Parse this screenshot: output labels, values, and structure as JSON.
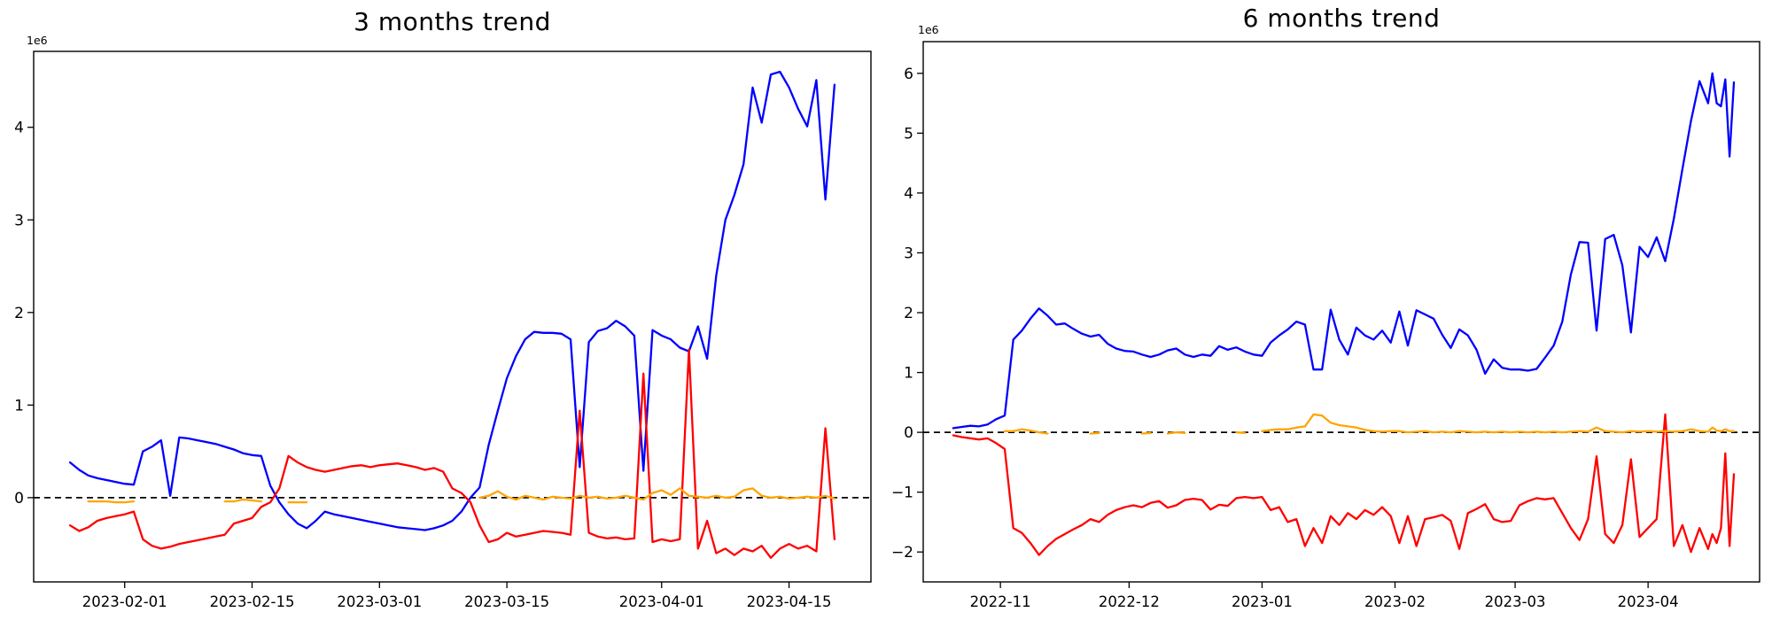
{
  "figure": {
    "background": "#ffffff"
  },
  "chart_data": [
    {
      "type": "line",
      "title": "3 months trend",
      "y_offset_label": "1e6",
      "y_unit_multiplier": 1000000,
      "xlabel": "",
      "ylabel": "",
      "grid": false,
      "legend": "none",
      "ylim": [
        -0.91,
        4.82
      ],
      "xlim": [
        "2023-01-22",
        "2023-04-24"
      ],
      "y_ticks": [
        0,
        1,
        2,
        3,
        4
      ],
      "x_ticks": [
        {
          "label": "2023-02-01",
          "date": "2023-02-01"
        },
        {
          "label": "2023-02-15",
          "date": "2023-02-15"
        },
        {
          "label": "2023-03-01",
          "date": "2023-03-01"
        },
        {
          "label": "2023-03-15",
          "date": "2023-03-15"
        },
        {
          "label": "2023-04-01",
          "date": "2023-04-01"
        },
        {
          "label": "2023-04-15",
          "date": "2023-04-15"
        }
      ],
      "zero_line": {
        "y": 0,
        "style": "dashed",
        "color": "#000000"
      },
      "x": [
        "2023-01-26",
        "2023-01-27",
        "2023-01-28",
        "2023-01-29",
        "2023-01-30",
        "2023-01-31",
        "2023-02-01",
        "2023-02-02",
        "2023-02-03",
        "2023-02-04",
        "2023-02-05",
        "2023-02-06",
        "2023-02-07",
        "2023-02-08",
        "2023-02-09",
        "2023-02-10",
        "2023-02-11",
        "2023-02-12",
        "2023-02-13",
        "2023-02-14",
        "2023-02-15",
        "2023-02-16",
        "2023-02-17",
        "2023-02-18",
        "2023-02-19",
        "2023-02-20",
        "2023-02-21",
        "2023-02-22",
        "2023-02-23",
        "2023-02-24",
        "2023-02-25",
        "2023-02-26",
        "2023-02-27",
        "2023-02-28",
        "2023-03-01",
        "2023-03-02",
        "2023-03-03",
        "2023-03-04",
        "2023-03-05",
        "2023-03-06",
        "2023-03-07",
        "2023-03-08",
        "2023-03-09",
        "2023-03-10",
        "2023-03-11",
        "2023-03-12",
        "2023-03-13",
        "2023-03-14",
        "2023-03-15",
        "2023-03-16",
        "2023-03-17",
        "2023-03-18",
        "2023-03-19",
        "2023-03-20",
        "2023-03-21",
        "2023-03-22",
        "2023-03-23",
        "2023-03-24",
        "2023-03-25",
        "2023-03-26",
        "2023-03-27",
        "2023-03-28",
        "2023-03-29",
        "2023-03-30",
        "2023-03-31",
        "2023-04-01",
        "2023-04-02",
        "2023-04-03",
        "2023-04-04",
        "2023-04-05",
        "2023-04-06",
        "2023-04-07",
        "2023-04-08",
        "2023-04-09",
        "2023-04-10",
        "2023-04-11",
        "2023-04-12",
        "2023-04-13",
        "2023-04-14",
        "2023-04-15",
        "2023-04-16",
        "2023-04-17",
        "2023-04-18",
        "2023-04-19",
        "2023-04-20"
      ],
      "series": [
        {
          "name": "blue",
          "color": "#0000ff",
          "values": [
            0.38,
            0.3,
            0.24,
            0.21,
            0.19,
            0.17,
            0.15,
            0.14,
            0.5,
            0.55,
            0.62,
            0.02,
            0.65,
            0.64,
            0.62,
            0.6,
            0.58,
            0.55,
            0.52,
            0.48,
            0.46,
            0.45,
            0.13,
            -0.05,
            -0.18,
            -0.28,
            -0.33,
            -0.25,
            -0.15,
            -0.18,
            -0.2,
            -0.22,
            -0.24,
            -0.26,
            -0.28,
            -0.3,
            -0.32,
            -0.33,
            -0.34,
            -0.35,
            -0.33,
            -0.3,
            -0.25,
            -0.15,
            0.0,
            0.11,
            0.57,
            0.94,
            1.29,
            1.53,
            1.71,
            1.79,
            1.78,
            1.78,
            1.77,
            1.71,
            0.33,
            1.68,
            1.8,
            1.83,
            1.91,
            1.85,
            1.75,
            0.29,
            1.81,
            1.75,
            1.71,
            1.62,
            1.58,
            1.85,
            1.5,
            2.4,
            3.0,
            3.27,
            3.6,
            4.43,
            4.05,
            4.57,
            4.6,
            4.43,
            4.2,
            4.01,
            4.51,
            3.22,
            4.46
          ]
        },
        {
          "name": "red",
          "color": "#ff0000",
          "values": [
            -0.3,
            -0.36,
            -0.32,
            -0.25,
            -0.22,
            -0.2,
            -0.18,
            -0.15,
            -0.45,
            -0.52,
            -0.55,
            -0.53,
            -0.5,
            -0.48,
            -0.46,
            -0.44,
            -0.42,
            -0.4,
            -0.28,
            -0.25,
            -0.22,
            -0.1,
            -0.05,
            0.1,
            0.45,
            0.38,
            0.33,
            0.3,
            0.28,
            0.3,
            0.32,
            0.34,
            0.35,
            0.33,
            0.35,
            0.36,
            0.37,
            0.35,
            0.33,
            0.3,
            0.32,
            0.28,
            0.1,
            0.05,
            -0.05,
            -0.3,
            -0.48,
            -0.45,
            -0.38,
            -0.42,
            -0.4,
            -0.38,
            -0.36,
            -0.37,
            -0.38,
            -0.4,
            0.94,
            -0.38,
            -0.42,
            -0.44,
            -0.43,
            -0.45,
            -0.44,
            1.34,
            -0.48,
            -0.45,
            -0.47,
            -0.45,
            1.6,
            -0.55,
            -0.25,
            -0.6,
            -0.55,
            -0.62,
            -0.55,
            -0.58,
            -0.52,
            -0.65,
            -0.55,
            -0.5,
            -0.55,
            -0.52,
            -0.58,
            0.75,
            -0.45
          ]
        },
        {
          "name": "orange",
          "color": "#ffa500",
          "values": [
            null,
            null,
            -0.04,
            -0.04,
            -0.04,
            -0.05,
            -0.05,
            -0.04,
            null,
            null,
            null,
            null,
            null,
            null,
            null,
            null,
            null,
            -0.04,
            -0.04,
            -0.02,
            -0.03,
            -0.04,
            null,
            null,
            -0.05,
            -0.05,
            -0.05,
            null,
            null,
            null,
            null,
            null,
            null,
            null,
            null,
            null,
            null,
            null,
            null,
            null,
            null,
            null,
            null,
            null,
            null,
            0.0,
            0.02,
            0.07,
            0.01,
            -0.02,
            0.02,
            0.0,
            -0.02,
            0.01,
            0.0,
            -0.01,
            0.02,
            0.0,
            0.01,
            -0.01,
            0.0,
            0.02,
            0.0,
            -0.02,
            0.05,
            0.08,
            0.03,
            0.1,
            0.02,
            0.01,
            0.0,
            0.02,
            0.0,
            0.01,
            0.08,
            0.1,
            0.02,
            0.0,
            0.01,
            -0.01,
            0.0,
            0.01,
            0.0,
            0.02,
            -0.01
          ]
        }
      ]
    },
    {
      "type": "line",
      "title": "6 months trend",
      "y_offset_label": "1e6",
      "y_unit_multiplier": 1000000,
      "xlabel": "",
      "ylabel": "",
      "grid": false,
      "legend": "none",
      "ylim": [
        -2.5,
        6.53
      ],
      "xlim": [
        "2022-10-14",
        "2023-04-27"
      ],
      "y_ticks": [
        -2,
        -1,
        0,
        1,
        2,
        3,
        4,
        5,
        6
      ],
      "x_ticks": [
        {
          "label": "2022-11",
          "date": "2022-11-01"
        },
        {
          "label": "2022-12",
          "date": "2022-12-01"
        },
        {
          "label": "2023-01",
          "date": "2023-01-01"
        },
        {
          "label": "2023-02",
          "date": "2023-02-01"
        },
        {
          "label": "2023-03",
          "date": "2023-03-01"
        },
        {
          "label": "2023-04",
          "date": "2023-04-01"
        }
      ],
      "zero_line": {
        "y": 0,
        "style": "dashed",
        "color": "#000000"
      },
      "x": [
        "2022-10-21",
        "2022-10-23",
        "2022-10-25",
        "2022-10-27",
        "2022-10-29",
        "2022-10-31",
        "2022-11-02",
        "2022-11-04",
        "2022-11-06",
        "2022-11-08",
        "2022-11-10",
        "2022-11-12",
        "2022-11-14",
        "2022-11-16",
        "2022-11-18",
        "2022-11-20",
        "2022-11-22",
        "2022-11-24",
        "2022-11-26",
        "2022-11-28",
        "2022-11-30",
        "2022-12-02",
        "2022-12-04",
        "2022-12-06",
        "2022-12-08",
        "2022-12-10",
        "2022-12-12",
        "2022-12-14",
        "2022-12-16",
        "2022-12-18",
        "2022-12-20",
        "2022-12-22",
        "2022-12-24",
        "2022-12-26",
        "2022-12-28",
        "2022-12-30",
        "2023-01-01",
        "2023-01-03",
        "2023-01-05",
        "2023-01-07",
        "2023-01-09",
        "2023-01-11",
        "2023-01-13",
        "2023-01-15",
        "2023-01-17",
        "2023-01-19",
        "2023-01-21",
        "2023-01-23",
        "2023-01-25",
        "2023-01-27",
        "2023-01-29",
        "2023-01-31",
        "2023-02-02",
        "2023-02-04",
        "2023-02-06",
        "2023-02-08",
        "2023-02-10",
        "2023-02-12",
        "2023-02-14",
        "2023-02-16",
        "2023-02-18",
        "2023-02-20",
        "2023-02-22",
        "2023-02-24",
        "2023-02-26",
        "2023-02-28",
        "2023-03-02",
        "2023-03-04",
        "2023-03-06",
        "2023-03-08",
        "2023-03-10",
        "2023-03-12",
        "2023-03-14",
        "2023-03-16",
        "2023-03-18",
        "2023-03-20",
        "2023-03-22",
        "2023-03-24",
        "2023-03-26",
        "2023-03-28",
        "2023-03-30",
        "2023-04-01",
        "2023-04-03",
        "2023-04-05",
        "2023-04-07",
        "2023-04-09",
        "2023-04-11",
        "2023-04-13",
        "2023-04-15",
        "2023-04-16",
        "2023-04-17",
        "2023-04-18",
        "2023-04-19",
        "2023-04-20",
        "2023-04-21"
      ],
      "series": [
        {
          "name": "blue",
          "color": "#0000ff",
          "values": [
            0.07,
            0.09,
            0.11,
            0.1,
            0.13,
            0.22,
            0.28,
            1.55,
            1.7,
            1.9,
            2.07,
            1.95,
            1.8,
            1.82,
            1.73,
            1.65,
            1.6,
            1.63,
            1.48,
            1.4,
            1.36,
            1.35,
            1.3,
            1.26,
            1.3,
            1.37,
            1.4,
            1.3,
            1.26,
            1.3,
            1.28,
            1.44,
            1.38,
            1.42,
            1.35,
            1.3,
            1.28,
            1.5,
            1.62,
            1.72,
            1.85,
            1.8,
            1.05,
            1.05,
            2.05,
            1.55,
            1.3,
            1.75,
            1.62,
            1.55,
            1.7,
            1.5,
            2.02,
            1.45,
            2.04,
            1.97,
            1.9,
            1.63,
            1.41,
            1.72,
            1.62,
            1.38,
            0.98,
            1.22,
            1.08,
            1.05,
            1.05,
            1.03,
            1.06,
            1.25,
            1.45,
            1.85,
            2.64,
            3.18,
            3.17,
            1.7,
            3.23,
            3.3,
            2.79,
            1.67,
            3.1,
            2.93,
            3.26,
            2.86,
            3.57,
            4.4,
            5.2,
            5.87,
            5.5,
            6.0,
            5.5,
            5.45,
            5.9,
            4.61,
            5.85
          ]
        },
        {
          "name": "red",
          "color": "#ff0000",
          "values": [
            -0.05,
            -0.08,
            -0.1,
            -0.12,
            -0.1,
            -0.18,
            -0.28,
            -1.6,
            -1.68,
            -1.85,
            -2.05,
            -1.9,
            -1.78,
            -1.7,
            -1.62,
            -1.55,
            -1.45,
            -1.5,
            -1.38,
            -1.3,
            -1.25,
            -1.22,
            -1.25,
            -1.18,
            -1.15,
            -1.26,
            -1.22,
            -1.13,
            -1.11,
            -1.13,
            -1.29,
            -1.21,
            -1.23,
            -1.1,
            -1.08,
            -1.1,
            -1.08,
            -1.3,
            -1.25,
            -1.5,
            -1.45,
            -1.9,
            -1.6,
            -1.85,
            -1.4,
            -1.55,
            -1.35,
            -1.45,
            -1.3,
            -1.38,
            -1.25,
            -1.4,
            -1.85,
            -1.4,
            -1.9,
            -1.45,
            -1.42,
            -1.38,
            -1.48,
            -1.95,
            -1.35,
            -1.28,
            -1.2,
            -1.45,
            -1.5,
            -1.48,
            -1.22,
            -1.15,
            -1.1,
            -1.12,
            -1.1,
            -1.35,
            -1.6,
            -1.8,
            -1.45,
            -0.4,
            -1.7,
            -1.85,
            -1.55,
            -0.45,
            -1.75,
            -1.6,
            -1.45,
            0.3,
            -1.9,
            -1.55,
            -2.0,
            -1.6,
            -1.95,
            -1.7,
            -1.85,
            -1.6,
            -0.35,
            -1.9,
            -0.7
          ]
        },
        {
          "name": "orange",
          "color": "#ffa500",
          "values": [
            null,
            null,
            null,
            null,
            null,
            null,
            0.02,
            0.02,
            0.05,
            0.03,
            0.0,
            -0.02,
            null,
            null,
            null,
            null,
            -0.02,
            -0.01,
            null,
            null,
            null,
            null,
            -0.02,
            -0.01,
            null,
            -0.02,
            0.0,
            -0.01,
            null,
            null,
            -0.01,
            null,
            null,
            0.0,
            -0.01,
            null,
            0.02,
            0.04,
            0.05,
            0.05,
            0.08,
            0.1,
            0.3,
            0.28,
            0.16,
            0.12,
            0.1,
            0.08,
            0.04,
            0.02,
            0.01,
            0.02,
            0.02,
            0.0,
            0.01,
            0.02,
            0.0,
            0.01,
            0.0,
            0.02,
            0.01,
            0.0,
            0.01,
            0.0,
            0.01,
            0.0,
            0.01,
            0.0,
            0.01,
            0.0,
            0.01,
            0.0,
            0.01,
            0.02,
            0.01,
            0.08,
            0.02,
            0.01,
            0.0,
            0.02,
            0.01,
            0.02,
            0.01,
            0.02,
            0.01,
            0.02,
            0.05,
            0.02,
            0.01,
            0.08,
            0.03,
            0.02,
            0.05,
            0.02,
            0.02
          ]
        }
      ]
    }
  ]
}
